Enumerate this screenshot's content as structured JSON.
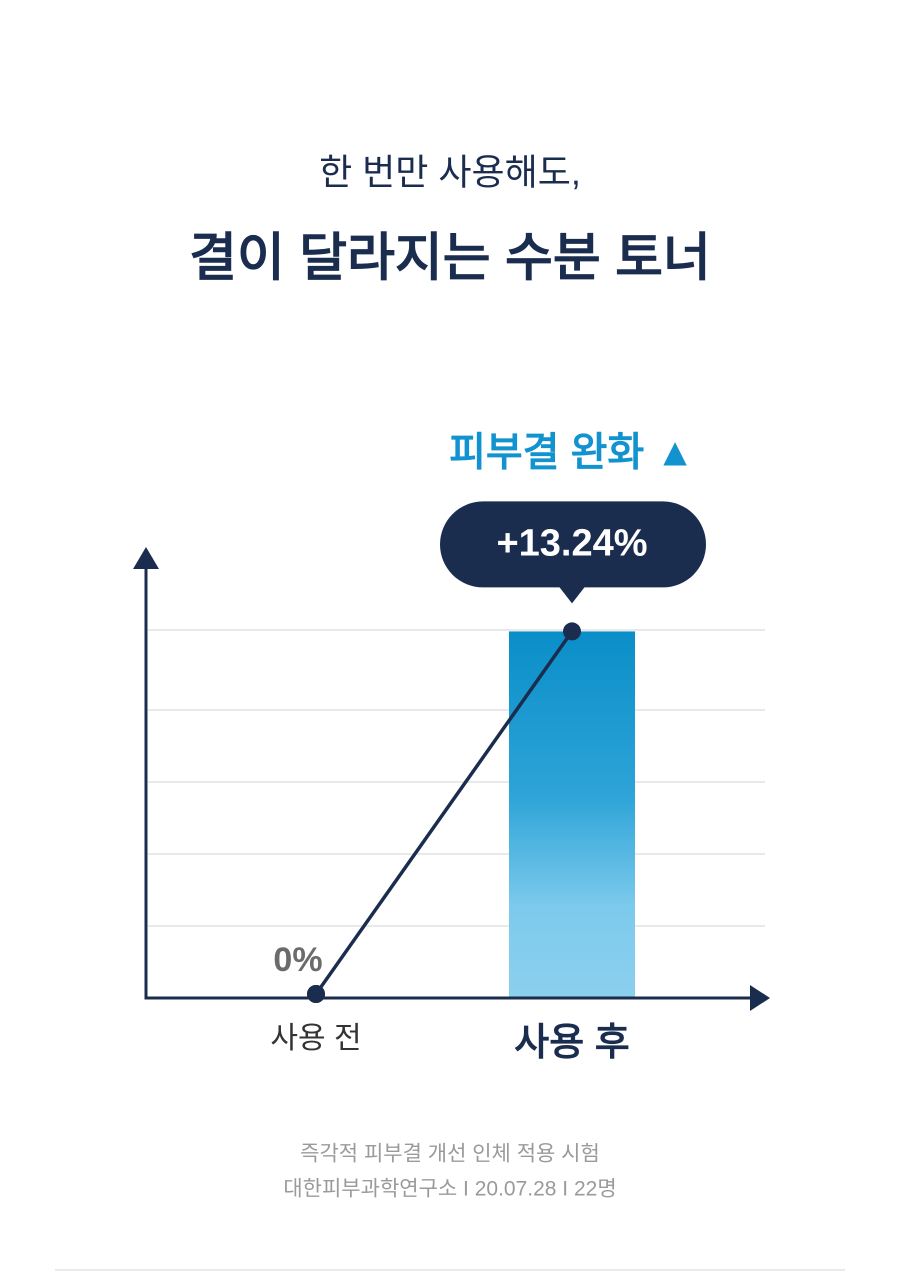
{
  "chart_data": {
    "type": "bar-line",
    "title": "한 번만 사용해도,",
    "subtitle": "결이 달라지는 수분 토너",
    "annotation": "피부결 완화 ▲",
    "categories": [
      "사용 전",
      "사용 후"
    ],
    "values": [
      0,
      13.24
    ],
    "value_labels": [
      "0%",
      "+13.24%"
    ],
    "color": "#1b2d4f",
    "bar_color": "#0a8ec8",
    "ylim": [
      0,
      16
    ],
    "footnotes": [
      "즉각적 피부결 개선 인체 적용 시험",
      "대한피부과학연구소 I 20.07.28 I 22명"
    ]
  }
}
